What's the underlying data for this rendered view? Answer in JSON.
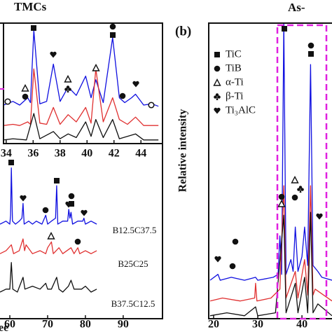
{
  "chart_data": [
    {
      "type": "line",
      "title": "TMCs",
      "x_label": "ee",
      "xlim": [
        57.4,
        100.4
      ],
      "ylim": [
        0,
        100
      ],
      "xticks": [
        60,
        70,
        80,
        90
      ],
      "series": [
        {
          "name": "B12.5C37.5",
          "color": "#1010e0",
          "x": [
            57.4,
            59,
            60,
            60.2,
            60.4,
            60.7,
            61.5,
            62.5,
            63.2,
            63.5,
            63.8,
            65,
            66,
            67,
            68.5,
            69.5,
            70,
            71,
            72.1,
            72.4,
            72.7,
            74,
            75.3,
            75.6,
            75.9,
            76.2,
            76.6,
            78,
            79.3,
            79.6,
            80,
            81.5,
            83
          ],
          "values": [
            32,
            33,
            32,
            35,
            51,
            33,
            32,
            33,
            34,
            39,
            32,
            33,
            32,
            33,
            32,
            35,
            32,
            33,
            34,
            45,
            32,
            33,
            33,
            37,
            34,
            36,
            32,
            33,
            33,
            34,
            32,
            33,
            32
          ]
        },
        {
          "name": "B25C25",
          "color": "#e03030",
          "x": [
            57.4,
            59,
            60.4,
            61,
            62.5,
            63.5,
            63.9,
            64.3,
            66,
            68,
            69.5,
            70,
            71,
            71.5,
            73,
            74,
            76.2,
            77,
            78,
            78.5,
            80,
            81.5,
            83
          ],
          "values": [
            22,
            23,
            25,
            22,
            23,
            27,
            23,
            25,
            22,
            23,
            22,
            24,
            26,
            22,
            24,
            22,
            24,
            22,
            24,
            22,
            23,
            22,
            23
          ]
        },
        {
          "name": "B37.5C12.5",
          "color": "#101010",
          "x": [
            57.4,
            59,
            60,
            60.4,
            60.8,
            62,
            63.5,
            64,
            66,
            68,
            69.5,
            70,
            71,
            72.4,
            73,
            74,
            75.5,
            76.2,
            77,
            79,
            80,
            81.5,
            83
          ],
          "values": [
            9,
            10,
            10,
            19,
            10,
            9,
            14,
            10,
            11,
            10,
            12,
            10,
            10,
            14,
            10,
            9,
            11,
            13,
            10,
            10,
            11,
            9,
            10
          ]
        }
      ]
    },
    {
      "type": "line",
      "xlim": [
        33.8,
        45.6
      ],
      "ylim": [
        0,
        100
      ],
      "xticks": [
        34,
        36,
        38,
        40,
        42,
        44
      ],
      "series": [
        {
          "color": "#1010e0",
          "x": [
            33.8,
            34.5,
            35,
            35.6,
            35.8,
            36.05,
            36.5,
            37,
            37.5,
            38,
            38.6,
            39.2,
            39.9,
            40.3,
            40.65,
            41.2,
            41.9,
            42.4,
            42.8,
            43.3,
            43.6,
            44.2,
            44.8,
            45.3
          ],
          "values": [
            32,
            35,
            32,
            38,
            34,
            94,
            33,
            35,
            66,
            35,
            47,
            40,
            56,
            38,
            53,
            34,
            88,
            38,
            34,
            38,
            41,
            32,
            33,
            31
          ]
        },
        {
          "color": "#e03030",
          "x": [
            33.8,
            34.5,
            35,
            35.6,
            35.8,
            36.05,
            36.5,
            37,
            37.5,
            38,
            38.6,
            39.2,
            39.9,
            40.3,
            40.65,
            41.2,
            41.9,
            42.4,
            43,
            43.6,
            44.2,
            45.3
          ],
          "values": [
            15,
            16,
            15,
            18,
            16,
            62,
            17,
            16,
            30,
            16,
            24,
            18,
            30,
            17,
            62,
            18,
            38,
            20,
            16,
            22,
            15,
            15
          ]
        },
        {
          "color": "#101010",
          "x": [
            33.8,
            34.5,
            35.5,
            36.05,
            36.5,
            37.5,
            38,
            38.6,
            39.2,
            39.9,
            40.3,
            40.65,
            41.2,
            41.9,
            42.4,
            43.6,
            44.2,
            45.3
          ],
          "values": [
            3,
            4,
            3,
            25,
            4,
            10,
            4,
            8,
            5,
            18,
            6,
            20,
            5,
            20,
            4,
            8,
            3,
            3
          ]
        }
      ]
    },
    {
      "type": "line",
      "title": "As-",
      "panel_label": "(b)",
      "y_label": "Relative intensity",
      "xlim": [
        18.9,
        46.8
      ],
      "ylim": [
        0,
        100
      ],
      "xticks": [
        20,
        30,
        40
      ],
      "legend_entries": [
        "TiC",
        "TiB",
        "α-Ti",
        "β-Ti",
        "Ti₃AlC"
      ],
      "series": [
        {
          "color": "#1010e0",
          "x": [
            19.2,
            21,
            21.5,
            24,
            27,
            29.5,
            30,
            33.5,
            34.6,
            35,
            35.4,
            35.9,
            36.4,
            37.5,
            38,
            38.5,
            39.1,
            40,
            40.6,
            41.3,
            41.95,
            42.5,
            43.6,
            44.5,
            46.8
          ],
          "values": [
            13,
            15,
            13,
            14,
            13,
            14,
            13,
            14,
            15,
            28,
            15,
            100,
            15,
            20,
            16,
            31,
            16,
            21,
            31,
            18,
            86,
            18,
            16,
            14,
            13
          ]
        },
        {
          "color": "#e03030",
          "x": [
            19.2,
            22,
            26,
            29.3,
            29.5,
            29.8,
            33,
            35,
            35.9,
            36.4,
            38.5,
            39.1,
            40.6,
            41.3,
            41.95,
            42.5,
            43,
            46.8
          ],
          "values": [
            6,
            7,
            6,
            7,
            12,
            6,
            7,
            10,
            45,
            7,
            16,
            7,
            20,
            8,
            45,
            8,
            10,
            6
          ]
        },
        {
          "color": "#101010",
          "x": [
            19.2,
            23,
            27,
            29.5,
            30,
            34,
            35.9,
            36.4,
            38.5,
            39.1,
            40.6,
            41.3,
            41.95,
            42.5,
            43.6,
            46.8
          ],
          "values": [
            1,
            2,
            1,
            4,
            1,
            2,
            35,
            2,
            12,
            2,
            14,
            2,
            36,
            2,
            5,
            1
          ]
        }
      ]
    }
  ]
}
